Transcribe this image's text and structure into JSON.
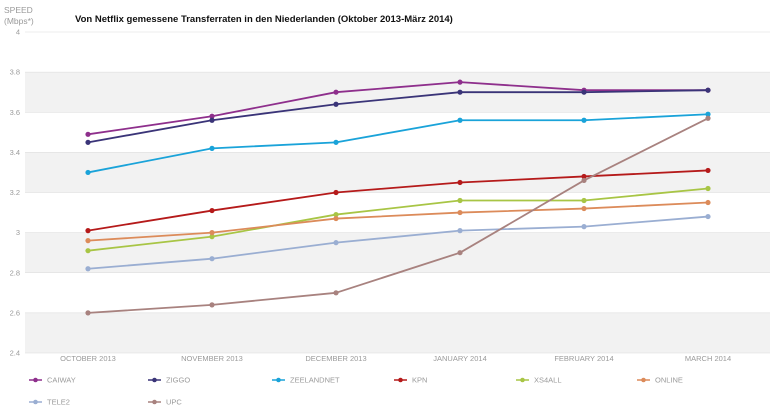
{
  "chart_data": {
    "type": "line",
    "title": "Von Netflix gemessene Transferraten in den Niederlanden (Oktober 2013-März 2014)",
    "ylabel_line1": "SPEED",
    "ylabel_line2": "(Mbps*)",
    "xlabel": "",
    "categories": [
      "OCTOBER 2013",
      "NOVEMBER 2013",
      "DECEMBER 2013",
      "JANUARY 2014",
      "FEBRUARY 2014",
      "MARCH 2014"
    ],
    "ylim": [
      2.4,
      4.0
    ],
    "yticks": [
      {
        "value": 4.0,
        "label": "4"
      },
      {
        "value": 3.8,
        "label": "3.8"
      },
      {
        "value": 3.6,
        "label": "3.6"
      },
      {
        "value": 3.4,
        "label": "3.4"
      },
      {
        "value": 3.2,
        "label": "3.2"
      },
      {
        "value": 3.0,
        "label": "3"
      },
      {
        "value": 2.8,
        "label": "2.8"
      },
      {
        "value": 2.6,
        "label": "2.6"
      },
      {
        "value": 2.4,
        "label": "2.4"
      }
    ],
    "grid": true,
    "legend_position": "bottom",
    "series": [
      {
        "name": "CAIWAY",
        "color": "#8e2f8c",
        "values": [
          3.49,
          3.58,
          3.7,
          3.75,
          3.71,
          3.71
        ]
      },
      {
        "name": "ZIGGO",
        "color": "#3a3478",
        "values": [
          3.45,
          3.56,
          3.64,
          3.7,
          3.7,
          3.71
        ]
      },
      {
        "name": "ZEELANDNET",
        "color": "#1aa3d9",
        "values": [
          3.3,
          3.42,
          3.45,
          3.56,
          3.56,
          3.59
        ]
      },
      {
        "name": "KPN",
        "color": "#b51a1a",
        "values": [
          3.01,
          3.11,
          3.2,
          3.25,
          3.28,
          3.31
        ]
      },
      {
        "name": "XS4ALL",
        "color": "#a8c545",
        "values": [
          2.91,
          2.98,
          3.09,
          3.16,
          3.16,
          3.22
        ]
      },
      {
        "name": "ONLINE",
        "color": "#dc8b5a",
        "values": [
          2.96,
          3.0,
          3.07,
          3.1,
          3.12,
          3.15
        ]
      },
      {
        "name": "TELE2",
        "color": "#9aaed2",
        "values": [
          2.82,
          2.87,
          2.95,
          3.01,
          3.03,
          3.08
        ]
      },
      {
        "name": "UPC",
        "color": "#a8827f",
        "values": [
          2.6,
          2.64,
          2.7,
          2.9,
          3.26,
          3.57
        ]
      }
    ]
  }
}
